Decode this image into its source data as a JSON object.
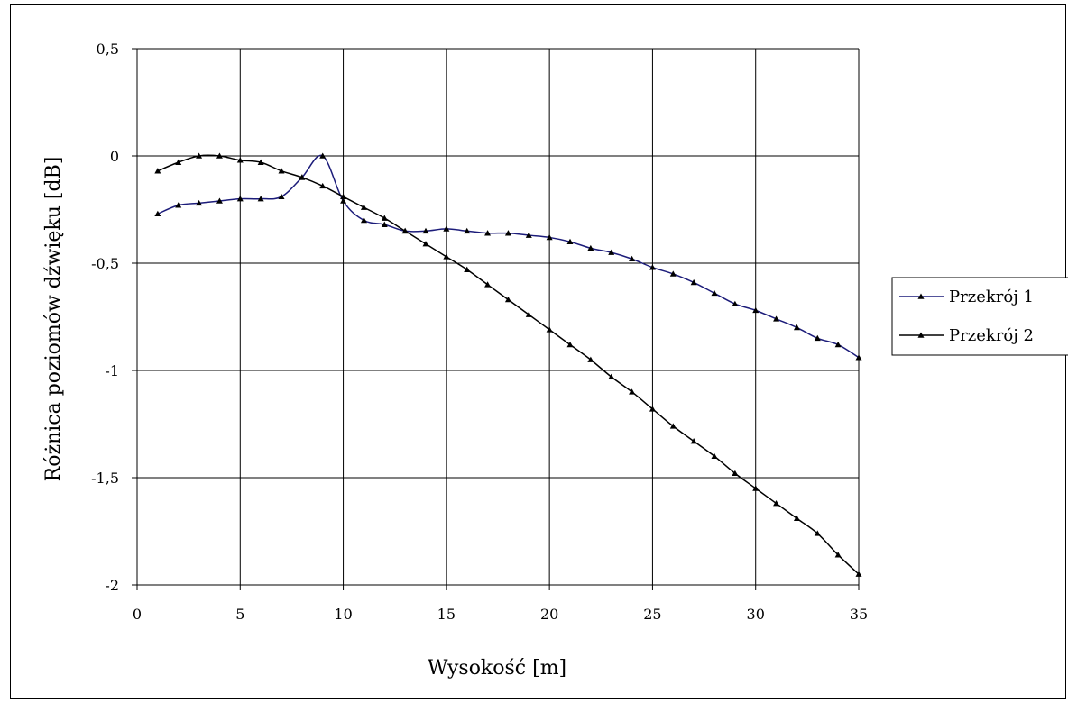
{
  "chart_data": {
    "type": "line",
    "title": "",
    "xlabel": "Wysokość [m]",
    "ylabel": "Różnica poziomów dźwięku [dB]",
    "xlim": [
      0,
      35
    ],
    "ylim": [
      -2,
      0.5
    ],
    "x_ticks": [
      0,
      5,
      10,
      15,
      20,
      25,
      30,
      35
    ],
    "y_ticks": [
      0.5,
      0,
      -0.5,
      -1,
      -1.5,
      -2
    ],
    "x_tick_labels": [
      "0",
      "5",
      "10",
      "15",
      "20",
      "25",
      "30",
      "35"
    ],
    "y_tick_labels": [
      "0,5",
      "0",
      "-0,5",
      "-1",
      "-1,5",
      "-2"
    ],
    "grid": true,
    "legend_position": "right",
    "x": [
      1,
      2,
      3,
      4,
      5,
      6,
      7,
      8,
      9,
      10,
      11,
      12,
      13,
      14,
      15,
      16,
      17,
      18,
      19,
      20,
      21,
      22,
      23,
      24,
      25,
      26,
      27,
      28,
      29,
      30,
      31,
      32,
      33,
      34,
      35
    ],
    "series": [
      {
        "name": "Przekrój 1",
        "color": "#1c1c7a",
        "marker": "triangle",
        "values": [
          -0.27,
          -0.23,
          -0.22,
          -0.21,
          -0.2,
          -0.2,
          -0.19,
          -0.1,
          0.0,
          -0.21,
          -0.3,
          -0.32,
          -0.35,
          -0.35,
          -0.34,
          -0.35,
          -0.36,
          -0.36,
          -0.37,
          -0.38,
          -0.4,
          -0.43,
          -0.45,
          -0.48,
          -0.52,
          -0.55,
          -0.59,
          -0.64,
          -0.69,
          -0.72,
          -0.76,
          -0.8,
          -0.85,
          -0.88,
          -0.94
        ]
      },
      {
        "name": "Przekrój 2",
        "color": "#000000",
        "marker": "triangle",
        "values": [
          -0.07,
          -0.03,
          0.0,
          0.0,
          -0.02,
          -0.03,
          -0.07,
          -0.1,
          -0.14,
          -0.19,
          -0.24,
          -0.29,
          -0.35,
          -0.41,
          -0.47,
          -0.53,
          -0.6,
          -0.67,
          -0.74,
          -0.81,
          -0.88,
          -0.95,
          -1.03,
          -1.1,
          -1.18,
          -1.26,
          -1.33,
          -1.4,
          -1.48,
          -1.55,
          -1.62,
          -1.69,
          -1.76,
          -1.86,
          -1.95
        ]
      }
    ]
  }
}
